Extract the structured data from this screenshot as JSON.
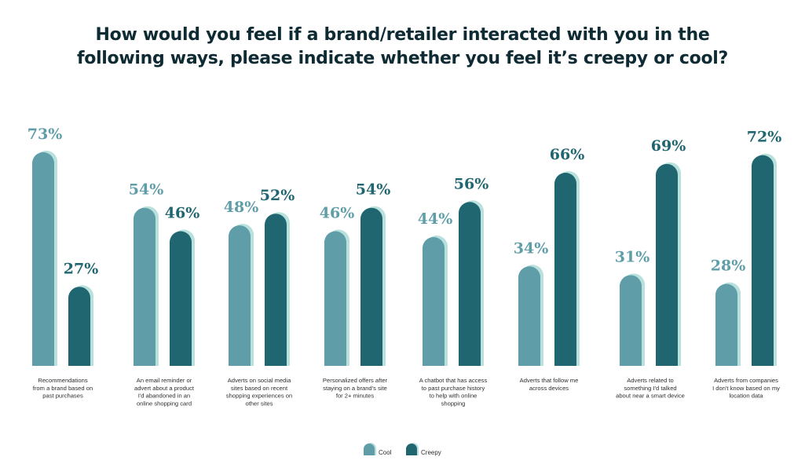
{
  "chart_data": {
    "type": "bar",
    "title_lines": [
      "How would you feel if a brand/retailer interacted with you in the",
      "following ways, please indicate whether you feel it’s creepy or cool?"
    ],
    "categories": [
      [
        "Recommendations",
        "from a brand based on",
        "past purchases"
      ],
      [
        "An email reminder or",
        "advert about a product",
        "I'd abandoned in an",
        "online shopping card"
      ],
      [
        "Adverts on social media",
        "sites based on recent",
        "shopping experiences on",
        "other sites"
      ],
      [
        "Personalized offers after",
        "staying on a brand's site",
        "for 2+ minutes"
      ],
      [
        "A chatbot that has access",
        "to past purchase history",
        "to help with online",
        "shopping"
      ],
      [
        "Adverts that follow me",
        "across devices"
      ],
      [
        "Adverts related to",
        "something I'd talked",
        "about near a smart device"
      ],
      [
        "Adverts from companies",
        "I don't know based on my",
        "location data"
      ]
    ],
    "series": [
      {
        "name": "Cool",
        "values": [
          73,
          54,
          48,
          46,
          44,
          34,
          31,
          28
        ],
        "labels": [
          "73%",
          "54%",
          "48%",
          "46%",
          "44%",
          "34%",
          "31%",
          "28%"
        ],
        "color": "#5f9da8",
        "label_color": "#5f9da8"
      },
      {
        "name": "Creepy",
        "values": [
          27,
          46,
          52,
          54,
          56,
          66,
          69,
          72
        ],
        "labels": [
          "27%",
          "46%",
          "52%",
          "54%",
          "56%",
          "66%",
          "69%",
          "72%"
        ],
        "color": "#1f6670",
        "label_color": "#1f6670"
      }
    ],
    "shadow_color": "#b8e0dc",
    "ylim": [
      0,
      100
    ],
    "legend_position": "bottom-center",
    "xlabel": "",
    "ylabel": ""
  }
}
